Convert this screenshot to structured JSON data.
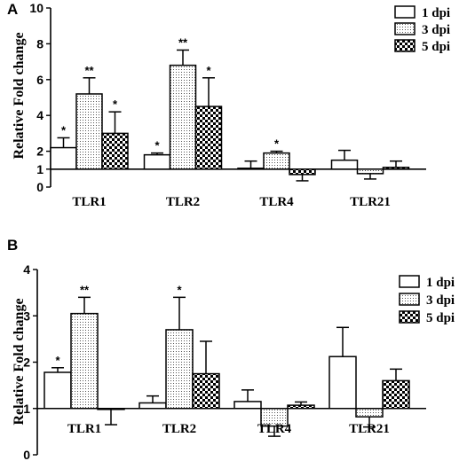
{
  "chart_data": [
    {
      "panel": "A",
      "type": "bar",
      "ylabel": "Relative Fold change",
      "ylim": [
        0,
        10
      ],
      "yticks": [
        0,
        1,
        2,
        4,
        6,
        8,
        10
      ],
      "baseline": 1,
      "categories": [
        "TLR1",
        "TLR2",
        "TLR4",
        "TLR21"
      ],
      "legend_position": "top-right",
      "series": [
        {
          "name": "1 dpi",
          "pattern": "white",
          "values": [
            2.2,
            1.8,
            1.05,
            1.5
          ],
          "errors": [
            0.55,
            0.1,
            0.4,
            0.55
          ],
          "significance": [
            "*",
            "*",
            "",
            ""
          ]
        },
        {
          "name": "3 dpi",
          "pattern": "dots",
          "values": [
            5.2,
            6.8,
            1.9,
            0.75
          ],
          "errors": [
            0.9,
            0.85,
            0.1,
            0.3
          ],
          "significance": [
            "**",
            "**",
            "*",
            ""
          ]
        },
        {
          "name": "5 dpi",
          "pattern": "checker",
          "values": [
            3.0,
            4.5,
            0.7,
            1.1
          ],
          "errors": [
            1.2,
            1.6,
            0.35,
            0.35
          ],
          "significance": [
            "*",
            "*",
            "",
            ""
          ]
        }
      ]
    },
    {
      "panel": "B",
      "type": "bar",
      "ylabel": "Relative Fold change",
      "ylim": [
        0,
        4
      ],
      "yticks": [
        0,
        1,
        2,
        3,
        4
      ],
      "baseline": 1,
      "categories": [
        "TLR1",
        "TLR2",
        "TLR4",
        "TLR21"
      ],
      "legend_position": "top-right",
      "series": [
        {
          "name": "1 dpi",
          "pattern": "white",
          "values": [
            1.78,
            1.12,
            1.15,
            2.12
          ],
          "errors": [
            0.1,
            0.15,
            0.25,
            0.63
          ],
          "significance": [
            "*",
            "",
            "",
            ""
          ]
        },
        {
          "name": "3 dpi",
          "pattern": "dots",
          "values": [
            3.05,
            2.7,
            0.62,
            0.82
          ],
          "errors": [
            0.35,
            0.7,
            0.22,
            0.22
          ],
          "significance": [
            "**",
            "*",
            "",
            ""
          ]
        },
        {
          "name": "5 dpi",
          "pattern": "checker",
          "values": [
            0.98,
            1.75,
            1.07,
            1.6
          ],
          "errors": [
            0.33,
            0.7,
            0.07,
            0.25
          ],
          "significance": [
            "",
            "",
            "",
            ""
          ]
        }
      ]
    }
  ]
}
